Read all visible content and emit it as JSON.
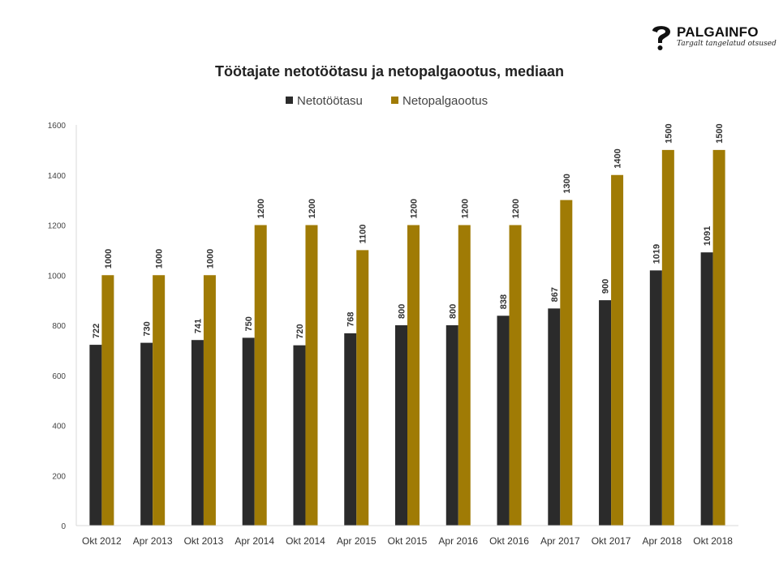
{
  "logo": {
    "name": "PALGAINFO",
    "tagline": "Targalt tangelatud otsused"
  },
  "chart_data": {
    "type": "bar",
    "title": "Töötajate netotöötasu ja netopalgaootus, mediaan",
    "xlabel": "",
    "ylabel": "",
    "ylim": [
      0,
      1600
    ],
    "yticks": [
      0,
      200,
      400,
      600,
      800,
      1000,
      1200,
      1400,
      1600
    ],
    "categories": [
      "Okt 2012",
      "Apr 2013",
      "Okt 2013",
      "Apr 2014",
      "Okt 2014",
      "Apr 2015",
      "Okt 2015",
      "Apr 2016",
      "Okt 2016",
      "Apr 2017",
      "Okt 2017",
      "Apr 2018",
      "Okt 2018"
    ],
    "series": [
      {
        "name": "Netotöötasu",
        "color": "#2b2b2b",
        "values": [
          722,
          730,
          741,
          750,
          720,
          768,
          800,
          800,
          838,
          867,
          900,
          1019,
          1091
        ]
      },
      {
        "name": "Netopalgaootus",
        "color": "#a07b05",
        "values": [
          1000,
          1000,
          1000,
          1200,
          1200,
          1100,
          1200,
          1200,
          1200,
          1300,
          1400,
          1500,
          1500
        ]
      }
    ],
    "legend_position": "top-center",
    "grid": false,
    "data_labels": "vertical, above bars"
  }
}
